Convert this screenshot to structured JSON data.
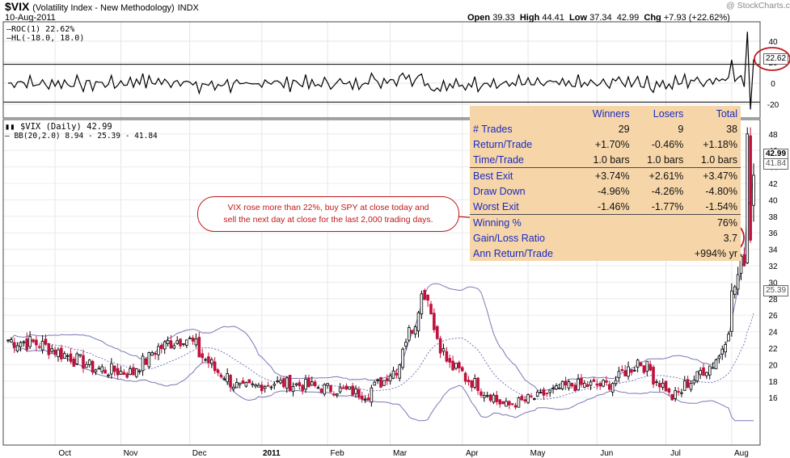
{
  "header": {
    "symbol": "$VIX",
    "name": "(Volatility Index - New Methodology)",
    "exchange": "INDX",
    "date": "10-Aug-2011",
    "open_label": "Open",
    "open": "39.33",
    "high_label": "High",
    "high": "44.41",
    "low_label": "Low",
    "low": "37.34",
    "close": "42.99",
    "chg_label": "Chg",
    "chg": "+7.93 (+22.62%)",
    "watermark": "@ StockCharts.com"
  },
  "roc_panel": {
    "legend_roc": "ROC(1) 22.62%",
    "legend_hl": "HL(-18.0, 18.0)",
    "y_ticks": [
      "40",
      "20",
      "0",
      "-20"
    ],
    "current_label": "22.62",
    "hl_levels": [
      18,
      -18
    ],
    "ylim": [
      -26,
      50
    ]
  },
  "price_panel": {
    "legend_vix": "$VIX (Daily) 42.99",
    "legend_bb": "BB(20,2.0) 8.94 - 25.39 - 41.84",
    "y_ticks": [
      "48",
      "46",
      "44",
      "42",
      "40",
      "38",
      "36",
      "34",
      "32",
      "30",
      "28",
      "26",
      "24",
      "22",
      "20",
      "18",
      "16"
    ],
    "last_label": "42.99",
    "bb_upper_label": "41.84",
    "bb_mid_label": "25.39",
    "ylim": [
      13.5,
      48.5
    ]
  },
  "months": [
    "Oct",
    "Nov",
    "Dec",
    "2011",
    "Feb",
    "Mar",
    "Apr",
    "May",
    "Jun",
    "Jul",
    "Aug"
  ],
  "stats": {
    "headers": [
      "",
      "Winners",
      "Losers",
      "Total"
    ],
    "group1": [
      [
        "# Trades",
        "29",
        "9",
        "38"
      ],
      [
        "Return/Trade",
        "+1.70%",
        "-0.46%",
        "+1.18%"
      ],
      [
        "Time/Trade",
        "1.0 bars",
        "1.0 bars",
        "1.0 bars"
      ]
    ],
    "group2": [
      [
        "Best Exit",
        "+3.74%",
        "+2.61%",
        "+3.47%"
      ],
      [
        "Draw Down",
        "-4.96%",
        "-4.26%",
        "-4.80%"
      ],
      [
        "Worst Exit",
        "-1.46%",
        "-1.77%",
        "-1.54%"
      ]
    ],
    "group3": [
      [
        "Winning %",
        "76%"
      ],
      [
        "Gain/Loss Ratio",
        "3.7"
      ],
      [
        "Ann Return/Trade",
        "+994% yr"
      ]
    ]
  },
  "annotation": {
    "line1": "VIX rose more than 22%, buy SPY at close today and",
    "line2": "sell the next day at close for the last 2,000 trading days."
  },
  "colors": {
    "up": "#000000",
    "down": "#c0103c",
    "bb": "#7a78b8",
    "accent": "#c0181c",
    "table_bg": "#f6d6a9"
  },
  "chart_data": {
    "type": "candlestick",
    "x_range": [
      "2010-09-10",
      "2011-08-10"
    ],
    "anchors": [
      [
        "2010-09-10",
        23.0
      ],
      [
        "2010-09-25",
        22.5
      ],
      [
        "2010-10-08",
        21.0
      ],
      [
        "2010-10-20",
        19.5
      ],
      [
        "2010-11-05",
        19.0
      ],
      [
        "2010-11-17",
        22.0
      ],
      [
        "2010-11-29",
        23.5
      ],
      [
        "2010-12-10",
        20.0
      ],
      [
        "2010-12-24",
        17.0
      ],
      [
        "2011-01-07",
        17.8
      ],
      [
        "2011-01-20",
        17.5
      ],
      [
        "2011-02-04",
        17.0
      ],
      [
        "2011-02-18",
        16.4
      ],
      [
        "2011-03-03",
        19.5
      ],
      [
        "2011-03-16",
        29.0
      ],
      [
        "2011-03-25",
        20.5
      ],
      [
        "2011-04-08",
        17.5
      ],
      [
        "2011-04-21",
        15.0
      ],
      [
        "2011-05-05",
        16.0
      ],
      [
        "2011-05-20",
        17.5
      ],
      [
        "2011-06-06",
        17.5
      ],
      [
        "2011-06-20",
        20.5
      ],
      [
        "2011-07-05",
        16.0
      ],
      [
        "2011-07-15",
        18.5
      ],
      [
        "2011-07-26",
        21.0
      ],
      [
        "2011-08-04",
        32.0
      ],
      [
        "2011-08-05",
        32.0
      ],
      [
        "2011-08-08",
        48.0
      ],
      [
        "2011-08-09",
        35.1
      ],
      [
        "2011-08-10",
        42.99
      ]
    ],
    "last_candle": {
      "open": 39.33,
      "high": 44.41,
      "low": 37.34,
      "close": 42.99
    },
    "roc_last": 22.62,
    "bollinger": {
      "period": 20,
      "stddev": 2.0,
      "lower": 8.94,
      "middle": 25.39,
      "upper": 41.84
    }
  }
}
